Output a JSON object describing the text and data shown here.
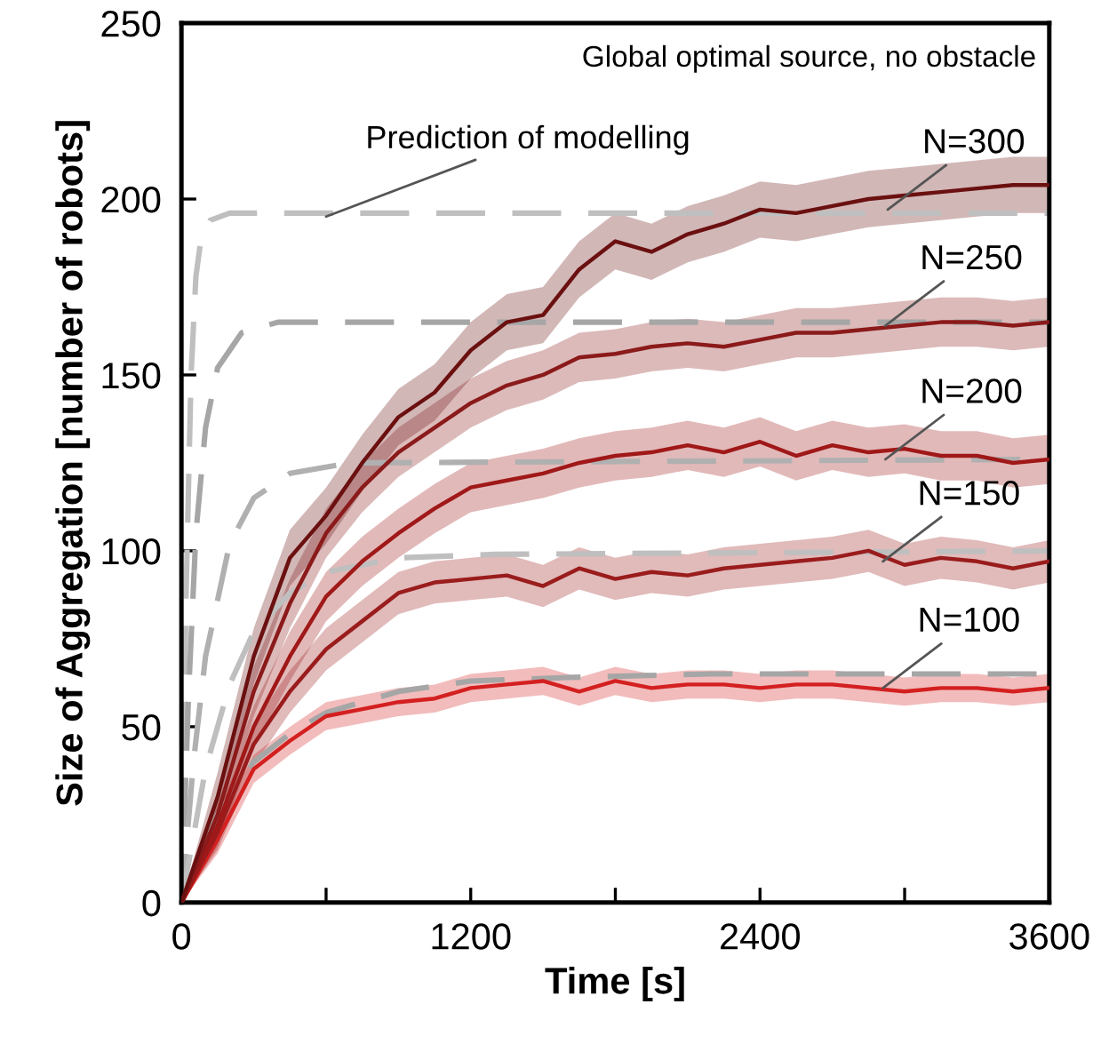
{
  "chart_data": {
    "type": "line",
    "xlabel": "Time [s]",
    "ylabel": "Size of Aggregation [number of robots]",
    "xlim": [
      0,
      3600
    ],
    "ylim": [
      0,
      250
    ],
    "xticks": [
      0,
      {
        "value": 600,
        "label": null
      },
      1200,
      {
        "value": 1800,
        "label": null
      },
      2400,
      {
        "value": 3000,
        "label": null
      },
      3600
    ],
    "yticks": [
      0,
      50,
      100,
      150,
      200,
      250
    ],
    "grid": false,
    "legend": false,
    "marker": "none",
    "x": [
      0,
      150,
      300,
      450,
      600,
      750,
      900,
      1050,
      1200,
      1350,
      1500,
      1650,
      1800,
      1950,
      2100,
      2250,
      2400,
      2550,
      2700,
      2850,
      3000,
      3150,
      3300,
      3450,
      3600
    ],
    "series": [
      {
        "color": "#d42020",
        "values": [
          0,
          18,
          38,
          46,
          53,
          55,
          57,
          58,
          61,
          62,
          63,
          60,
          63,
          61,
          62,
          62,
          61,
          62,
          62,
          61,
          60,
          61,
          61,
          60,
          61
        ],
        "lower": [
          0,
          14,
          34,
          42,
          49,
          51,
          53,
          54,
          57,
          58,
          59,
          56,
          59,
          57,
          58,
          58,
          57,
          58,
          58,
          57,
          56,
          57,
          57,
          56,
          57
        ],
        "upper": [
          0,
          22,
          42,
          50,
          57,
          59,
          61,
          62,
          65,
          66,
          67,
          64,
          67,
          65,
          66,
          66,
          65,
          66,
          66,
          65,
          64,
          65,
          65,
          64,
          65
        ]
      },
      {
        "color": "#9a1c1c",
        "values": [
          0,
          20,
          45,
          60,
          72,
          80,
          88,
          91,
          92,
          93,
          90,
          95,
          92,
          94,
          93,
          95,
          96,
          97,
          98,
          100,
          96,
          98,
          97,
          95,
          97
        ],
        "lower": [
          0,
          15,
          39,
          54,
          66,
          74,
          82,
          85,
          86,
          87,
          84,
          89,
          86,
          88,
          87,
          89,
          90,
          91,
          92,
          94,
          90,
          92,
          91,
          89,
          91
        ],
        "upper": [
          0,
          25,
          51,
          66,
          78,
          86,
          94,
          97,
          98,
          99,
          96,
          101,
          98,
          100,
          99,
          101,
          102,
          103,
          104,
          106,
          102,
          104,
          103,
          101,
          103
        ]
      },
      {
        "color": "#a01818",
        "values": [
          0,
          22,
          50,
          70,
          87,
          97,
          105,
          112,
          118,
          120,
          122,
          125,
          127,
          128,
          130,
          128,
          131,
          127,
          130,
          128,
          129,
          127,
          127,
          125,
          126
        ],
        "lower": [
          0,
          16,
          44,
          63,
          80,
          90,
          98,
          105,
          111,
          113,
          115,
          118,
          120,
          121,
          123,
          121,
          124,
          120,
          123,
          121,
          122,
          120,
          120,
          118,
          119
        ],
        "upper": [
          0,
          28,
          56,
          77,
          94,
          104,
          112,
          119,
          125,
          127,
          129,
          132,
          134,
          135,
          137,
          135,
          138,
          134,
          137,
          135,
          136,
          134,
          134,
          132,
          133
        ]
      },
      {
        "color": "#8b1a1a",
        "values": [
          0,
          25,
          60,
          85,
          105,
          118,
          128,
          135,
          142,
          147,
          150,
          155,
          156,
          158,
          159,
          158,
          160,
          162,
          162,
          163,
          164,
          165,
          165,
          164,
          165
        ],
        "lower": [
          0,
          19,
          53,
          78,
          98,
          111,
          121,
          128,
          135,
          140,
          143,
          148,
          149,
          151,
          152,
          151,
          153,
          155,
          155,
          156,
          157,
          158,
          158,
          157,
          158
        ],
        "upper": [
          0,
          31,
          67,
          92,
          112,
          125,
          135,
          142,
          149,
          154,
          157,
          162,
          163,
          165,
          166,
          165,
          167,
          169,
          169,
          170,
          171,
          172,
          172,
          171,
          172
        ]
      },
      {
        "color": "#6b1010",
        "values": [
          0,
          30,
          70,
          98,
          110,
          125,
          138,
          145,
          157,
          165,
          167,
          180,
          188,
          185,
          190,
          193,
          197,
          196,
          198,
          200,
          201,
          202,
          203,
          204,
          204
        ],
        "lower": [
          0,
          23,
          62,
          90,
          102,
          117,
          130,
          137,
          149,
          157,
          159,
          172,
          180,
          177,
          182,
          185,
          189,
          188,
          190,
          192,
          193,
          194,
          195,
          196,
          196
        ],
        "upper": [
          0,
          37,
          78,
          106,
          118,
          133,
          146,
          153,
          165,
          173,
          175,
          188,
          196,
          193,
          198,
          201,
          205,
          204,
          206,
          208,
          209,
          210,
          211,
          212,
          212
        ]
      },
      {
        "color": "#bfbfbf",
        "line_style": "dashed",
        "x": [
          0,
          20,
          40,
          60,
          80,
          120,
          200,
          3600
        ],
        "values": [
          0,
          90,
          150,
          178,
          188,
          194,
          196,
          196
        ]
      },
      {
        "color": "#a6a6a6",
        "line_style": "dashed",
        "x": [
          0,
          30,
          60,
          100,
          150,
          250,
          400,
          3600
        ],
        "values": [
          0,
          60,
          105,
          135,
          152,
          162,
          165,
          165
        ]
      },
      {
        "color": "#b0b0b0",
        "line_style": "dashed",
        "x": [
          0,
          50,
          100,
          200,
          300,
          450,
          700,
          3600
        ],
        "values": [
          0,
          40,
          70,
          102,
          115,
          122,
          125,
          126
        ]
      },
      {
        "color": "#bfbfbf",
        "line_style": "dashed",
        "x": [
          0,
          100,
          200,
          300,
          450,
          600,
          900,
          1300,
          3600
        ],
        "values": [
          0,
          38,
          62,
          77,
          88,
          94,
          98,
          99,
          100
        ]
      },
      {
        "color": "#a6a6a6",
        "line_style": "dashed",
        "x": [
          0,
          150,
          300,
          450,
          600,
          900,
          1200,
          1600,
          2200,
          3600
        ],
        "values": [
          0,
          25,
          40,
          48,
          54,
          60,
          63,
          64,
          65,
          65
        ]
      }
    ],
    "annotations": [
      "Global optimal source, no obstacle",
      {
        "text": "Prediction of modelling",
        "x": 600,
        "y": 195
      },
      {
        "text": "N=300",
        "x": 2930,
        "y": 197
      },
      {
        "text": "N=250",
        "x": 2920,
        "y": 164
      },
      {
        "text": "N=200",
        "x": 2920,
        "y": 126
      },
      {
        "text": "N=150",
        "x": 2910,
        "y": 97
      },
      {
        "text": "N=100",
        "x": 2910,
        "y": 61
      }
    ]
  }
}
